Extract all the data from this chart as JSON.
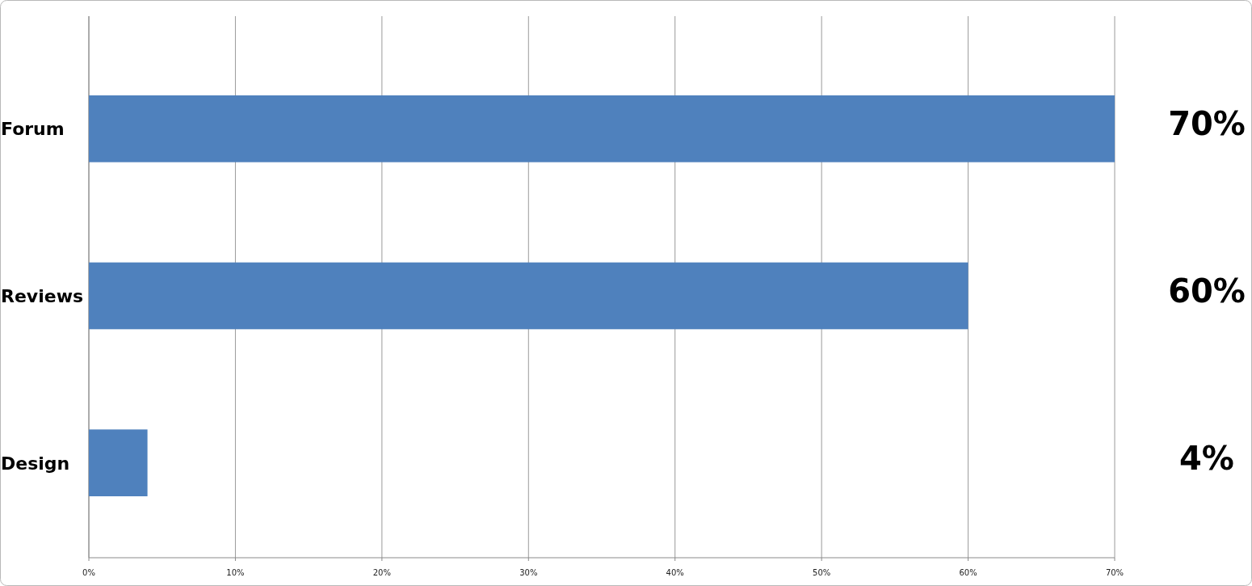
{
  "chart_data": {
    "type": "bar",
    "orientation": "horizontal",
    "categories": [
      "Forum",
      "Reviews",
      "Design"
    ],
    "values": [
      70,
      60,
      4
    ],
    "color": "#4f81bd",
    "xlim": [
      0,
      70
    ],
    "xticks": [
      {
        "value": 0,
        "label": "0%"
      },
      {
        "value": 10,
        "label": "10%"
      },
      {
        "value": 20,
        "label": "20%"
      },
      {
        "value": 30,
        "label": "30%"
      },
      {
        "value": 40,
        "label": "40%"
      },
      {
        "value": 50,
        "label": "50%"
      },
      {
        "value": 60,
        "label": "60%"
      },
      {
        "value": 70,
        "label": "70%"
      }
    ],
    "grid": "x",
    "value_labels": [
      "70%",
      "60%",
      "4%"
    ]
  }
}
